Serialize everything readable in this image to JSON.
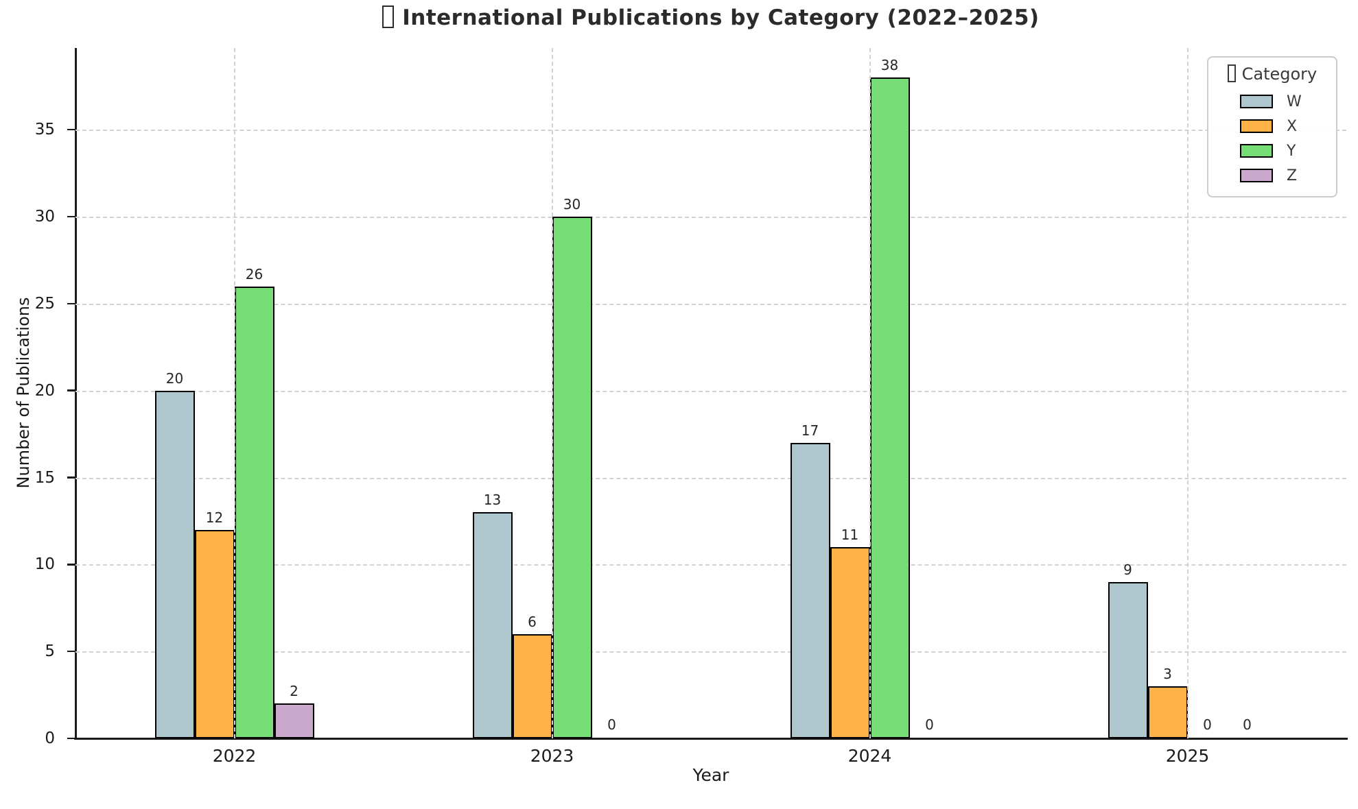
{
  "chart_data": {
    "type": "bar",
    "title": "International Publications by Category (2022–2025)",
    "xlabel": "Year",
    "ylabel": "Number of Publications",
    "legend_title": "Category",
    "legend_position": "upper right",
    "grid": true,
    "categories": [
      "2022",
      "2023",
      "2024",
      "2025"
    ],
    "series": [
      {
        "name": "W",
        "color": "#AEC7CF",
        "values": [
          20,
          13,
          17,
          9
        ]
      },
      {
        "name": "X",
        "color": "#FFB247",
        "values": [
          12,
          6,
          11,
          3
        ]
      },
      {
        "name": "Y",
        "color": "#77DD77",
        "values": [
          26,
          30,
          38,
          0
        ]
      },
      {
        "name": "Z",
        "color": "#CBA8CE",
        "values": [
          2,
          0,
          0,
          0
        ]
      }
    ],
    "bar_value_labels": true,
    "ylim": [
      0,
      39.7
    ],
    "yticks": [
      0,
      5,
      10,
      15,
      20,
      25,
      30,
      35
    ]
  }
}
